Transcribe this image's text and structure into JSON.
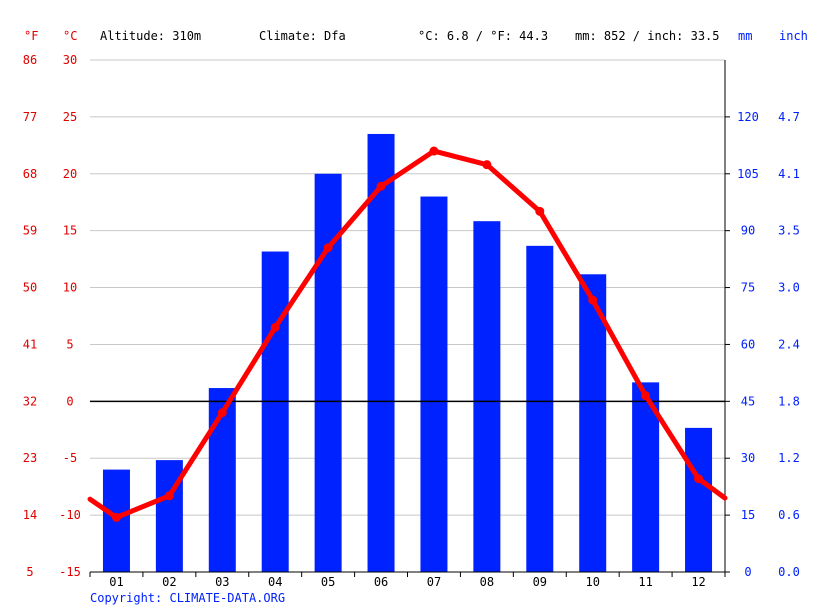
{
  "header": {
    "unit_f": "°F",
    "unit_c": "°C",
    "altitude": "Altitude: 310m",
    "climate": "Climate: Dfa",
    "temp_avg": "°C: 6.8 / °F: 44.3",
    "precip_avg": "mm: 852 / inch: 33.5",
    "unit_mm": "mm",
    "unit_inch": "inch"
  },
  "copyright": "Copyright: CLIMATE-DATA.ORG",
  "colors": {
    "temp": "#ff0000",
    "precip": "#0022ff",
    "axis_red": "#e00000",
    "axis_blue": "#0020ff",
    "grid": "#c8c8c8"
  },
  "chart_data": {
    "type": "bar",
    "categories": [
      "01",
      "02",
      "03",
      "04",
      "05",
      "06",
      "07",
      "08",
      "09",
      "10",
      "11",
      "12"
    ],
    "series": [
      {
        "axis": "right",
        "type": "bar",
        "values": [
          27.0,
          29.5,
          48.5,
          84.5,
          105.0,
          115.5,
          99.0,
          92.5,
          86.0,
          78.5,
          50.0,
          38.0
        ]
      },
      {
        "axis": "left",
        "type": "line",
        "values": [
          -10.2,
          -8.3,
          -1.0,
          6.5,
          13.5,
          18.9,
          22.0,
          20.8,
          16.7,
          8.9,
          0.5,
          -6.8
        ]
      }
    ],
    "temp_start_c": -8.6,
    "temp_end_c": -8.5,
    "ylim_c": [
      -15,
      30
    ],
    "yticks_c": [
      "-15",
      "-10",
      "-5",
      "0",
      "5",
      "10",
      "15",
      "20",
      "25",
      "30"
    ],
    "yticks_f": [
      "5",
      "14",
      "23",
      "32",
      "41",
      "50",
      "59",
      "68",
      "77",
      "86"
    ],
    "ylim_mm": [
      0,
      135
    ],
    "yticks_mm": [
      "0",
      "15",
      "30",
      "45",
      "60",
      "75",
      "90",
      "105",
      "120"
    ],
    "yticks_inch": [
      "0.0",
      "0.6",
      "1.2",
      "1.8",
      "2.4",
      "3.0",
      "3.5",
      "4.1",
      "4.7"
    ],
    "grid": true
  }
}
